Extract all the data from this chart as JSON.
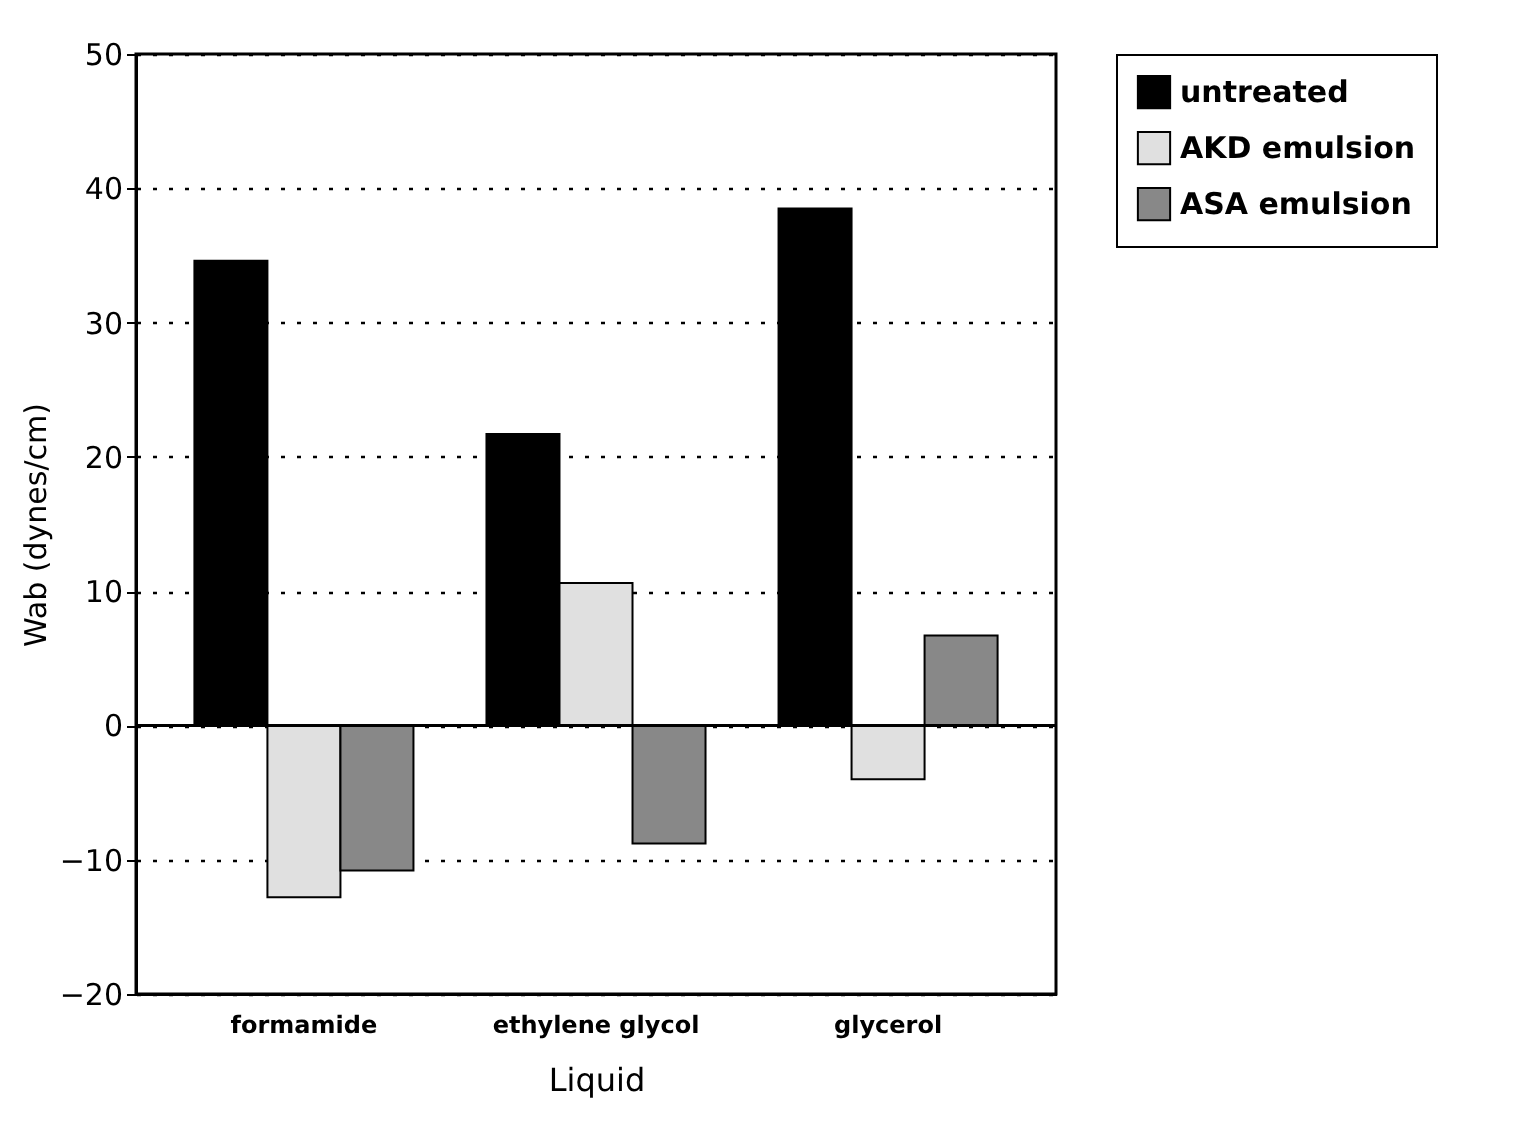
{
  "chart_data": {
    "type": "bar",
    "xlabel": "Liquid",
    "ylabel": "Wab (dynes/cm)",
    "categories": [
      "formamide",
      "ethylene glycol",
      "glycerol"
    ],
    "series": [
      {
        "name": "untreated",
        "color": "#000000",
        "values": [
          34.6,
          21.7,
          38.5
        ]
      },
      {
        "name": "AKD emulsion",
        "color": "#e0e0e0",
        "values": [
          -12.8,
          10.6,
          -4.0
        ]
      },
      {
        "name": "ASA emulsion",
        "color": "#888888",
        "values": [
          -10.8,
          -8.8,
          6.7
        ]
      }
    ],
    "ylim": [
      -20,
      50
    ],
    "yticks": [
      -20,
      -10,
      0,
      10,
      20,
      30,
      40,
      50
    ],
    "grid": "y",
    "legend": "right"
  }
}
